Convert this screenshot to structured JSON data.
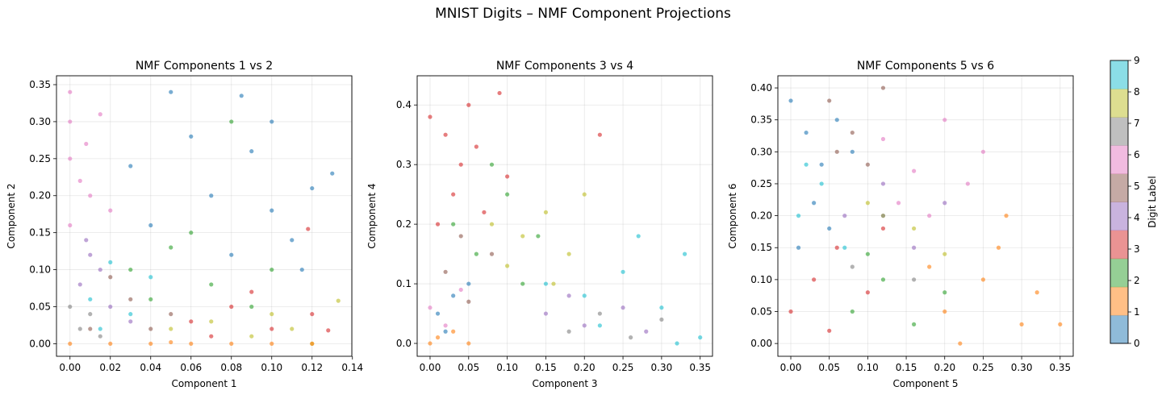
{
  "title": "MNIST Digits – NMF Component Projections",
  "colors": [
    "#1f77b4",
    "#ff7f0e",
    "#2ca02c",
    "#d62728",
    "#9467bd",
    "#8c564b",
    "#e377c2",
    "#7f7f7f",
    "#bcbd22",
    "#17becf"
  ],
  "colorbar": {
    "label": "Digit Label",
    "ticks": [
      "0",
      "1",
      "2",
      "3",
      "4",
      "5",
      "6",
      "7",
      "8",
      "9"
    ],
    "range": [
      0,
      9
    ]
  },
  "chart_data": [
    {
      "type": "scatter",
      "title": "NMF Components 1 vs 2",
      "xlabel": "Component 1",
      "ylabel": "Component 2",
      "xlim": [
        -0.0067,
        0.1397
      ],
      "ylim": [
        -0.017,
        0.362
      ],
      "xticks": [
        "0.00",
        "0.02",
        "0.04",
        "0.06",
        "0.08",
        "0.10",
        "0.12",
        "0.14"
      ],
      "yticks": [
        "0.00",
        "0.05",
        "0.10",
        "0.15",
        "0.20",
        "0.25",
        "0.30",
        "0.35"
      ],
      "grid": true,
      "series": [
        {
          "digit": 0,
          "points": [
            [
              0.05,
              0.34
            ],
            [
              0.085,
              0.335
            ],
            [
              0.13,
              0.23
            ],
            [
              0.07,
              0.2
            ],
            [
              0.1,
              0.18
            ],
            [
              0.11,
              0.14
            ],
            [
              0.09,
              0.26
            ],
            [
              0.06,
              0.28
            ],
            [
              0.12,
              0.21
            ],
            [
              0.04,
              0.16
            ],
            [
              0.08,
              0.12
            ],
            [
              0.1,
              0.3
            ],
            [
              0.115,
              0.1
            ],
            [
              0.03,
              0.24
            ]
          ]
        },
        {
          "digit": 1,
          "points": [
            [
              0.0,
              0.0
            ],
            [
              0.02,
              0.0
            ],
            [
              0.04,
              0.0
            ],
            [
              0.06,
              0.0
            ],
            [
              0.08,
              0.0
            ],
            [
              0.1,
              0.0
            ],
            [
              0.12,
              0.0
            ],
            [
              0.05,
              0.002
            ]
          ]
        },
        {
          "digit": 2,
          "points": [
            [
              0.03,
              0.1
            ],
            [
              0.05,
              0.13
            ],
            [
              0.07,
              0.08
            ],
            [
              0.09,
              0.05
            ],
            [
              0.06,
              0.15
            ],
            [
              0.04,
              0.06
            ],
            [
              0.1,
              0.1
            ],
            [
              0.08,
              0.3
            ]
          ]
        },
        {
          "digit": 3,
          "points": [
            [
              0.06,
              0.03
            ],
            [
              0.08,
              0.05
            ],
            [
              0.1,
              0.02
            ],
            [
              0.12,
              0.04
            ],
            [
              0.128,
              0.018
            ],
            [
              0.09,
              0.07
            ],
            [
              0.07,
              0.01
            ],
            [
              0.118,
              0.155
            ]
          ]
        },
        {
          "digit": 4,
          "points": [
            [
              0.005,
              0.08
            ],
            [
              0.01,
              0.12
            ],
            [
              0.02,
              0.05
            ],
            [
              0.015,
              0.1
            ],
            [
              0.03,
              0.03
            ],
            [
              0.008,
              0.14
            ]
          ]
        },
        {
          "digit": 5,
          "points": [
            [
              0.01,
              0.02
            ],
            [
              0.03,
              0.06
            ],
            [
              0.05,
              0.04
            ],
            [
              0.02,
              0.09
            ],
            [
              0.04,
              0.02
            ]
          ]
        },
        {
          "digit": 6,
          "points": [
            [
              0.0,
              0.34
            ],
            [
              0.0,
              0.3
            ],
            [
              0.0,
              0.25
            ],
            [
              0.005,
              0.22
            ],
            [
              0.01,
              0.2
            ],
            [
              0.015,
              0.31
            ],
            [
              0.008,
              0.27
            ],
            [
              0.02,
              0.18
            ],
            [
              0.0,
              0.16
            ]
          ]
        },
        {
          "digit": 7,
          "points": [
            [
              0.005,
              0.02
            ],
            [
              0.01,
              0.04
            ],
            [
              0.015,
              0.01
            ],
            [
              0.0,
              0.05
            ]
          ]
        },
        {
          "digit": 8,
          "points": [
            [
              0.05,
              0.02
            ],
            [
              0.07,
              0.03
            ],
            [
              0.09,
              0.01
            ],
            [
              0.11,
              0.02
            ],
            [
              0.133,
              0.058
            ],
            [
              0.12,
              0.0
            ],
            [
              0.1,
              0.04
            ]
          ]
        },
        {
          "digit": 9,
          "points": [
            [
              0.01,
              0.06
            ],
            [
              0.02,
              0.11
            ],
            [
              0.03,
              0.04
            ],
            [
              0.04,
              0.09
            ],
            [
              0.015,
              0.02
            ]
          ]
        }
      ]
    },
    {
      "type": "scatter",
      "title": "NMF Components 3 vs 4",
      "xlabel": "Component 3",
      "ylabel": "Component 4",
      "xlim": [
        -0.0167,
        0.366
      ],
      "ylim": [
        -0.0216,
        0.449
      ],
      "xticks": [
        "0.00",
        "0.05",
        "0.10",
        "0.15",
        "0.20",
        "0.25",
        "0.30",
        "0.35"
      ],
      "yticks": [
        "0.0",
        "0.1",
        "0.2",
        "0.3",
        "0.4"
      ],
      "grid": true,
      "series": [
        {
          "digit": 0,
          "points": [
            [
              0.01,
              0.05
            ],
            [
              0.03,
              0.08
            ],
            [
              0.02,
              0.02
            ],
            [
              0.05,
              0.1
            ]
          ]
        },
        {
          "digit": 1,
          "points": [
            [
              0.0,
              0.0
            ],
            [
              0.01,
              0.01
            ],
            [
              0.03,
              0.02
            ],
            [
              0.05,
              0.0
            ]
          ]
        },
        {
          "digit": 2,
          "points": [
            [
              0.03,
              0.2
            ],
            [
              0.06,
              0.15
            ],
            [
              0.1,
              0.25
            ],
            [
              0.12,
              0.1
            ],
            [
              0.08,
              0.3
            ],
            [
              0.14,
              0.18
            ]
          ]
        },
        {
          "digit": 3,
          "points": [
            [
              0.0,
              0.38
            ],
            [
              0.02,
              0.35
            ],
            [
              0.04,
              0.3
            ],
            [
              0.06,
              0.33
            ],
            [
              0.09,
              0.42
            ],
            [
              0.03,
              0.25
            ],
            [
              0.07,
              0.22
            ],
            [
              0.1,
              0.28
            ],
            [
              0.01,
              0.2
            ],
            [
              0.05,
              0.4
            ],
            [
              0.22,
              0.35
            ]
          ]
        },
        {
          "digit": 4,
          "points": [
            [
              0.15,
              0.05
            ],
            [
              0.2,
              0.03
            ],
            [
              0.25,
              0.06
            ],
            [
              0.28,
              0.02
            ],
            [
              0.18,
              0.08
            ]
          ]
        },
        {
          "digit": 5,
          "points": [
            [
              0.02,
              0.12
            ],
            [
              0.05,
              0.07
            ],
            [
              0.08,
              0.15
            ],
            [
              0.04,
              0.18
            ]
          ]
        },
        {
          "digit": 6,
          "points": [
            [
              0.0,
              0.06
            ],
            [
              0.02,
              0.03
            ],
            [
              0.04,
              0.09
            ]
          ]
        },
        {
          "digit": 7,
          "points": [
            [
              0.18,
              0.02
            ],
            [
              0.22,
              0.05
            ],
            [
              0.26,
              0.01
            ],
            [
              0.3,
              0.04
            ]
          ]
        },
        {
          "digit": 8,
          "points": [
            [
              0.08,
              0.2
            ],
            [
              0.12,
              0.18
            ],
            [
              0.15,
              0.22
            ],
            [
              0.18,
              0.15
            ],
            [
              0.1,
              0.13
            ],
            [
              0.2,
              0.25
            ],
            [
              0.16,
              0.1
            ]
          ]
        },
        {
          "digit": 9,
          "points": [
            [
              0.15,
              0.1
            ],
            [
              0.2,
              0.08
            ],
            [
              0.25,
              0.12
            ],
            [
              0.3,
              0.06
            ],
            [
              0.33,
              0.15
            ],
            [
              0.35,
              0.01
            ],
            [
              0.27,
              0.18
            ],
            [
              0.22,
              0.03
            ],
            [
              0.32,
              0.0
            ]
          ]
        }
      ]
    },
    {
      "type": "scatter",
      "title": "NMF Components 5 vs 6",
      "xlabel": "Component 5",
      "ylabel": "Component 6",
      "xlim": [
        -0.0168,
        0.367
      ],
      "ylim": [
        -0.02,
        0.419
      ],
      "xticks": [
        "0.00",
        "0.05",
        "0.10",
        "0.15",
        "0.20",
        "0.25",
        "0.30",
        "0.35"
      ],
      "yticks": [
        "0.00",
        "0.05",
        "0.10",
        "0.15",
        "0.20",
        "0.25",
        "0.30",
        "0.35",
        "0.40"
      ],
      "grid": true,
      "series": [
        {
          "digit": 0,
          "points": [
            [
              0.0,
              0.38
            ],
            [
              0.02,
              0.33
            ],
            [
              0.04,
              0.28
            ],
            [
              0.06,
              0.35
            ],
            [
              0.03,
              0.22
            ],
            [
              0.08,
              0.3
            ],
            [
              0.01,
              0.15
            ],
            [
              0.05,
              0.18
            ]
          ]
        },
        {
          "digit": 1,
          "points": [
            [
              0.2,
              0.05
            ],
            [
              0.25,
              0.1
            ],
            [
              0.3,
              0.03
            ],
            [
              0.35,
              0.03
            ],
            [
              0.27,
              0.15
            ],
            [
              0.22,
              0.0
            ],
            [
              0.32,
              0.08
            ],
            [
              0.18,
              0.12
            ],
            [
              0.28,
              0.2
            ]
          ]
        },
        {
          "digit": 2,
          "points": [
            [
              0.08,
              0.05
            ],
            [
              0.12,
              0.1
            ],
            [
              0.16,
              0.03
            ],
            [
              0.2,
              0.08
            ],
            [
              0.1,
              0.14
            ]
          ]
        },
        {
          "digit": 3,
          "points": [
            [
              0.0,
              0.05
            ],
            [
              0.03,
              0.1
            ],
            [
              0.06,
              0.15
            ],
            [
              0.1,
              0.08
            ],
            [
              0.05,
              0.02
            ],
            [
              0.12,
              0.18
            ]
          ]
        },
        {
          "digit": 4,
          "points": [
            [
              0.07,
              0.2
            ],
            [
              0.12,
              0.25
            ],
            [
              0.16,
              0.15
            ],
            [
              0.2,
              0.22
            ]
          ]
        },
        {
          "digit": 5,
          "points": [
            [
              0.05,
              0.38
            ],
            [
              0.08,
              0.33
            ],
            [
              0.12,
              0.4
            ],
            [
              0.1,
              0.28
            ],
            [
              0.06,
              0.3
            ]
          ]
        },
        {
          "digit": 6,
          "points": [
            [
              0.12,
              0.32
            ],
            [
              0.16,
              0.27
            ],
            [
              0.2,
              0.35
            ],
            [
              0.23,
              0.25
            ],
            [
              0.18,
              0.2
            ],
            [
              0.25,
              0.3
            ],
            [
              0.14,
              0.22
            ]
          ]
        },
        {
          "digit": 7,
          "points": [
            [
              0.08,
              0.12
            ],
            [
              0.12,
              0.2
            ],
            [
              0.16,
              0.1
            ]
          ]
        },
        {
          "digit": 8,
          "points": [
            [
              0.12,
              0.2
            ],
            [
              0.16,
              0.18
            ],
            [
              0.2,
              0.14
            ],
            [
              0.1,
              0.22
            ]
          ]
        },
        {
          "digit": 9,
          "points": [
            [
              0.01,
              0.2
            ],
            [
              0.04,
              0.25
            ],
            [
              0.07,
              0.15
            ],
            [
              0.02,
              0.28
            ]
          ]
        }
      ]
    }
  ]
}
